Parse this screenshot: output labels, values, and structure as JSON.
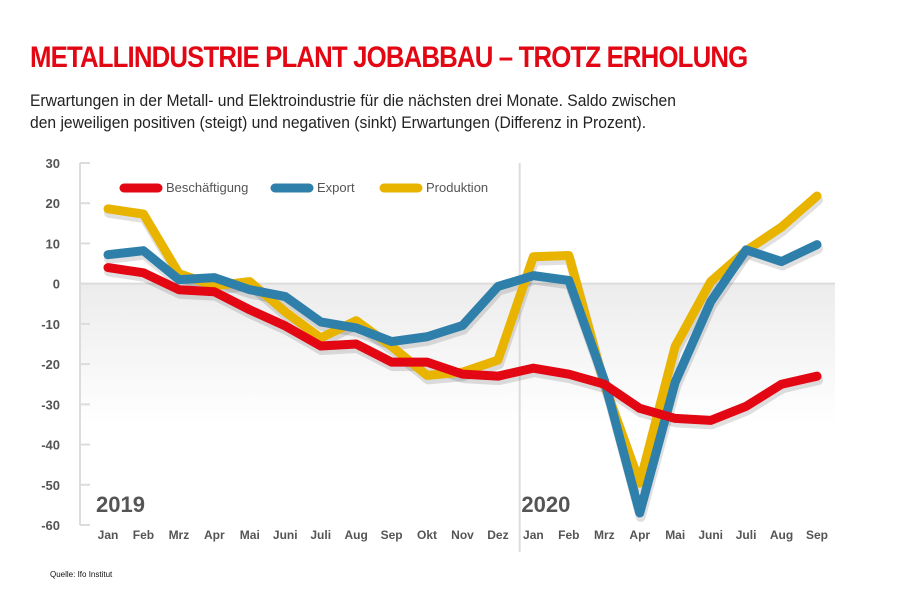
{
  "header": {
    "title": "METALLINDUSTRIE PLANT JOBABBAU – TROTZ ERHOLUNG",
    "subtitle_line1": "Erwartungen in der Metall- und Elektroindustrie für die nächsten drei Monate. Saldo zwischen",
    "subtitle_line2": "den jeweiligen positiven (steigt) und negativen (sinkt) Erwartungen (Differenz in Prozent)."
  },
  "source": "Quelle: Ifo Institut",
  "chart_data": {
    "type": "line",
    "title": "METALLINDUSTRIE PLANT JOBABBAU – TROTZ ERHOLUNG",
    "xlabel": "",
    "ylabel": "",
    "ylim": [
      -60,
      30
    ],
    "yticks": [
      30,
      20,
      10,
      0,
      -10,
      -20,
      -30,
      -40,
      -50,
      -60
    ],
    "year_labels": [
      {
        "label": "2019",
        "start_index": 0
      },
      {
        "label": "2020",
        "start_index": 12
      }
    ],
    "categories": [
      "Jan",
      "Feb",
      "Mrz",
      "Apr",
      "Mai",
      "Juni",
      "Juli",
      "Aug",
      "Sep",
      "Okt",
      "Nov",
      "Dez",
      "Jan",
      "Feb",
      "Mrz",
      "Apr",
      "Mai",
      "Juni",
      "Juli",
      "Aug",
      "Sep"
    ],
    "legend_position": "top-left",
    "series": [
      {
        "name": "Beschäftigung",
        "color": "#e30613",
        "values": [
          4,
          2.7,
          -1.5,
          -2,
          -6.5,
          -10.5,
          -15.5,
          -15,
          -19.5,
          -19.5,
          -22.5,
          -23,
          -21,
          -22.5,
          -25,
          -31,
          -33.5,
          -34,
          -30.5,
          -25,
          -23
        ]
      },
      {
        "name": "Export",
        "color": "#2f7fab",
        "values": [
          7.2,
          8.2,
          1,
          1.5,
          -1.5,
          -3.2,
          -9.5,
          -11,
          -14.4,
          -13.2,
          -10.4,
          -0.7,
          2,
          0.8,
          -24,
          -57,
          -24.5,
          -4.5,
          8.4,
          5.5,
          9.7
        ]
      },
      {
        "name": "Produktion",
        "color": "#e8b400",
        "values": [
          18.6,
          17.3,
          2.5,
          -0.5,
          0.5,
          -7,
          -13.5,
          -9.2,
          -15.6,
          -22.8,
          -22,
          -19,
          6.7,
          7,
          -25,
          -49.6,
          -15.6,
          0.5,
          8.2,
          14.1,
          21.8
        ]
      }
    ]
  }
}
